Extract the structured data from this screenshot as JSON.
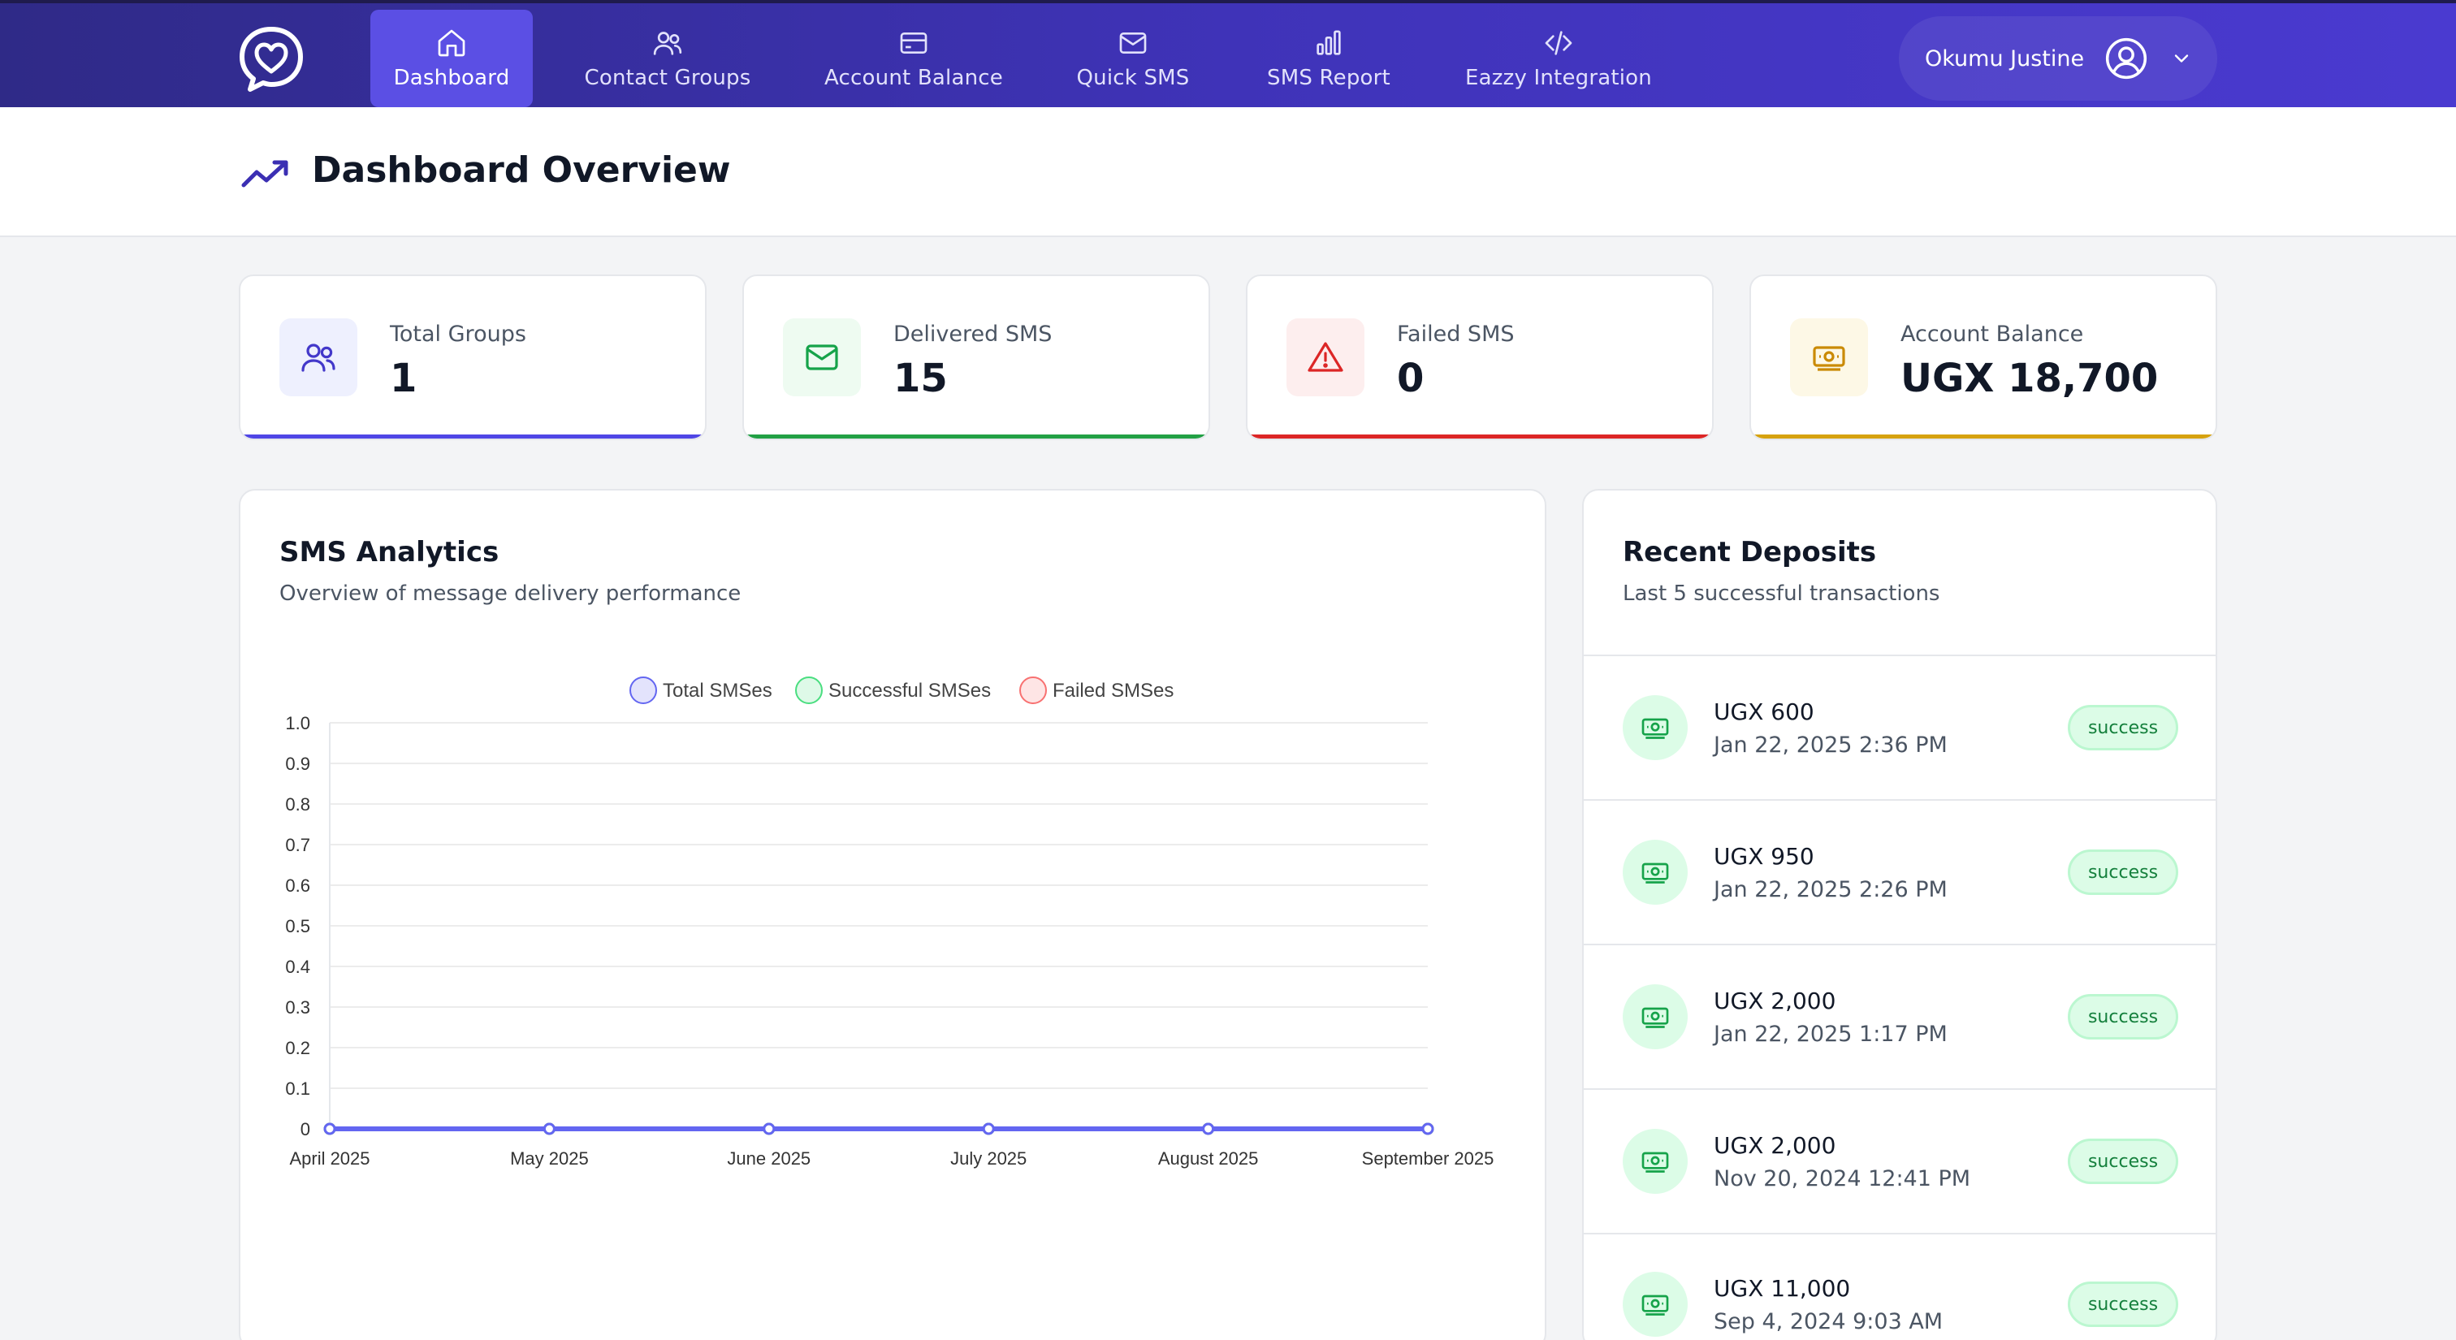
{
  "nav": {
    "items": [
      {
        "label": "Dashboard",
        "icon": "home-icon",
        "active": true
      },
      {
        "label": "Contact Groups",
        "icon": "users-icon",
        "active": false
      },
      {
        "label": "Account Balance",
        "icon": "credit-card-icon",
        "active": false
      },
      {
        "label": "Quick SMS",
        "icon": "mail-icon",
        "active": false
      },
      {
        "label": "SMS Report",
        "icon": "bar-chart-icon",
        "active": false
      },
      {
        "label": "Eazzy Integration",
        "icon": "code-icon",
        "active": false
      }
    ],
    "user_name": "Okumu Justine"
  },
  "header": {
    "title": "Dashboard Overview"
  },
  "stats": [
    {
      "label": "Total Groups",
      "value": "1",
      "icon": "users-icon",
      "accent": "#4f46e5",
      "bg": "#eef0fe"
    },
    {
      "label": "Delivered SMS",
      "value": "15",
      "icon": "mail-icon",
      "accent": "#22a045",
      "bg": "#eefbf1"
    },
    {
      "label": "Failed SMS",
      "value": "0",
      "icon": "alert-triangle-icon",
      "accent": "#dc2626",
      "bg": "#fdeeee"
    },
    {
      "label": "Account Balance",
      "value": "UGX 18,700",
      "icon": "banknote-icon",
      "accent": "#d6a210",
      "bg": "#fdf8e6"
    }
  ],
  "analytics": {
    "title": "SMS Analytics",
    "subtitle": "Overview of message delivery performance"
  },
  "chart_data": {
    "type": "line",
    "categories": [
      "April 2025",
      "May 2025",
      "June 2025",
      "July 2025",
      "August 2025",
      "September 2025"
    ],
    "series": [
      {
        "name": "Total SMSes",
        "values": [
          0,
          0,
          0,
          0,
          0,
          0
        ],
        "color": "#6366f1"
      },
      {
        "name": "Successful SMSes",
        "values": [
          0,
          0,
          0,
          0,
          0,
          0
        ],
        "color": "#4ade80"
      },
      {
        "name": "Failed SMSes",
        "values": [
          0,
          0,
          0,
          0,
          0,
          0
        ],
        "color": "#f87171"
      }
    ],
    "ylim": [
      0,
      1.0
    ],
    "yticks": [
      "0",
      "0.1",
      "0.2",
      "0.3",
      "0.4",
      "0.5",
      "0.6",
      "0.7",
      "0.8",
      "0.9",
      "1.0"
    ],
    "legend": "top",
    "grid": true
  },
  "deposits": {
    "title": "Recent Deposits",
    "subtitle": "Last 5 successful transactions",
    "items": [
      {
        "amount": "UGX 600",
        "date": "Jan 22, 2025 2:36 PM",
        "status": "success"
      },
      {
        "amount": "UGX 950",
        "date": "Jan 22, 2025 2:26 PM",
        "status": "success"
      },
      {
        "amount": "UGX 2,000",
        "date": "Jan 22, 2025 1:17 PM",
        "status": "success"
      },
      {
        "amount": "UGX 2,000",
        "date": "Nov 20, 2024 12:41 PM",
        "status": "success"
      },
      {
        "amount": "UGX 11,000",
        "date": "Sep 4, 2024 9:03 AM",
        "status": "success"
      }
    ]
  }
}
